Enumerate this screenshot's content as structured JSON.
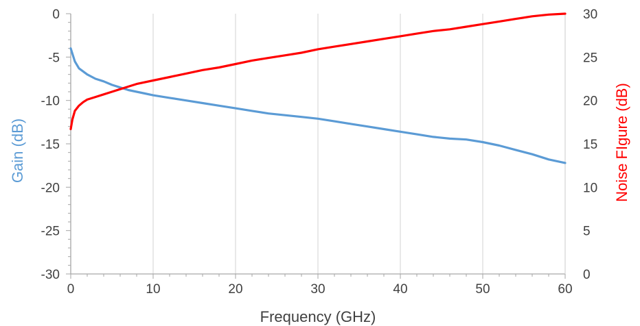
{
  "chart_data": {
    "type": "line",
    "title": "",
    "xlabel": "Frequency (GHz)",
    "ylabel_left": "Gain (dB)",
    "ylabel_right": "Noise FIgure (dB)",
    "xlim": [
      0,
      60
    ],
    "ylim_left": [
      -30,
      0
    ],
    "ylim_right": [
      0,
      30
    ],
    "x_ticks": [
      "0",
      "10",
      "20",
      "30",
      "40",
      "50",
      "60"
    ],
    "y_left_ticks": [
      "0",
      "-5",
      "-10",
      "-15",
      "-20",
      "-25",
      "-30"
    ],
    "y_right_ticks": [
      "30",
      "25",
      "20",
      "15",
      "10",
      "5",
      "0"
    ],
    "grid": "vertical",
    "legend": "none",
    "colors": {
      "gain": "#5B9BD5",
      "noise_figure": "#FF0000",
      "grid": "#D9D9D9",
      "axis": "#A6A6A6"
    },
    "series": [
      {
        "axis": "left",
        "x": [
          0,
          0.5,
          1,
          2,
          3,
          4,
          5,
          6,
          7,
          8,
          9,
          10,
          12,
          14,
          16,
          18,
          20,
          22,
          24,
          26,
          28,
          30,
          32,
          34,
          36,
          38,
          40,
          42,
          44,
          46,
          48,
          50,
          52,
          54,
          56,
          58,
          60
        ],
        "values": [
          -4,
          -5.5,
          -6.3,
          -7,
          -7.5,
          -7.8,
          -8.2,
          -8.5,
          -8.8,
          -9,
          -9.2,
          -9.4,
          -9.7,
          -10,
          -10.3,
          -10.6,
          -10.9,
          -11.2,
          -11.5,
          -11.7,
          -11.9,
          -12.1,
          -12.4,
          -12.7,
          -13,
          -13.3,
          -13.6,
          -13.9,
          -14.2,
          -14.4,
          -14.5,
          -14.8,
          -15.2,
          -15.7,
          -16.2,
          -16.8,
          -17.2
        ]
      },
      {
        "axis": "right",
        "x": [
          0,
          0.2,
          0.5,
          1,
          1.5,
          2,
          3,
          4,
          5,
          6,
          7,
          8,
          10,
          12,
          14,
          16,
          18,
          20,
          22,
          24,
          26,
          28,
          30,
          32,
          34,
          36,
          38,
          40,
          42,
          44,
          46,
          48,
          50,
          52,
          54,
          56,
          58,
          60
        ],
        "values": [
          16.7,
          17.8,
          18.8,
          19.4,
          19.8,
          20.1,
          20.4,
          20.7,
          21,
          21.3,
          21.6,
          21.9,
          22.3,
          22.7,
          23.1,
          23.5,
          23.8,
          24.2,
          24.6,
          24.9,
          25.2,
          25.5,
          25.9,
          26.2,
          26.5,
          26.8,
          27.1,
          27.4,
          27.7,
          28,
          28.2,
          28.5,
          28.8,
          29.1,
          29.4,
          29.7,
          29.9,
          30
        ]
      }
    ]
  }
}
